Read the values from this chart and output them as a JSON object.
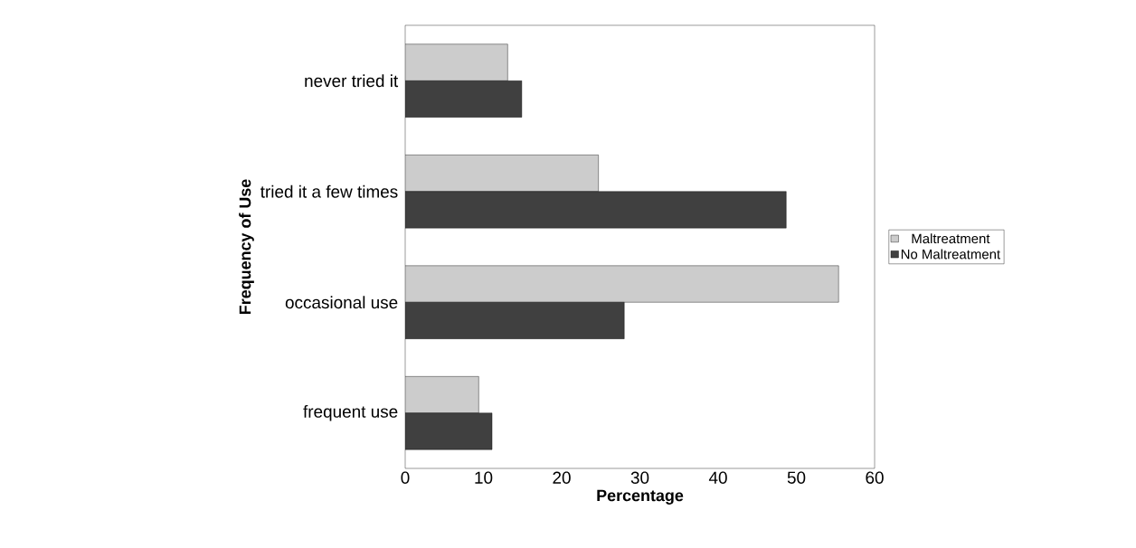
{
  "chart_data": {
    "type": "bar",
    "orientation": "horizontal",
    "xlabel": "Percentage",
    "ylabel": "Frequency of Use",
    "categories": [
      "never tried it",
      "tried it a few times",
      "occasional use",
      "frequent use"
    ],
    "series": [
      {
        "name": "Maltreatment",
        "color": "#cccccc",
        "values": [
          13.1,
          24.7,
          55.4,
          9.4
        ]
      },
      {
        "name": "No Maltreatment",
        "color": "#404040",
        "values": [
          14.9,
          48.7,
          28.0,
          11.1
        ]
      }
    ],
    "xlim": [
      0,
      60
    ],
    "xticks": [
      0,
      10,
      20,
      30,
      40,
      50,
      60
    ],
    "legend": "right"
  }
}
